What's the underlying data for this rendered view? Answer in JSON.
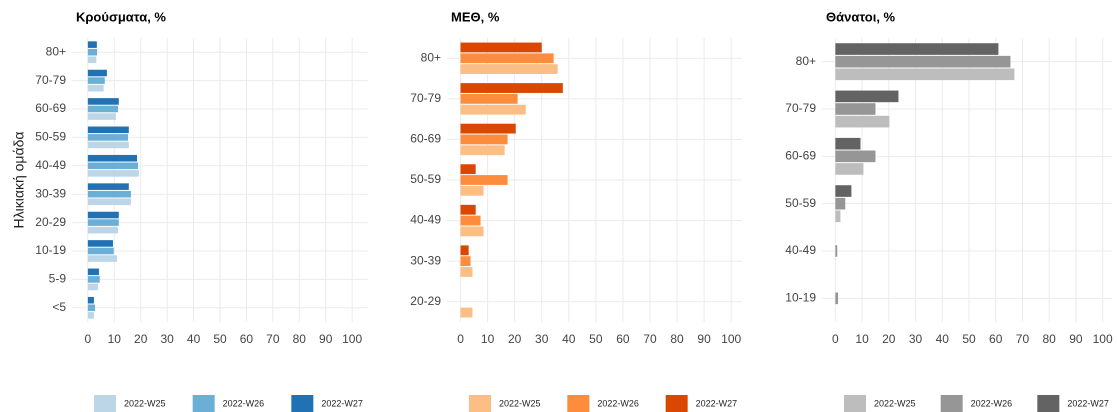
{
  "chart_data": [
    {
      "type": "barh",
      "title": "Κρούσματα, %",
      "ylabel": "Ηλικιακή ομάδα",
      "categories": [
        "80+",
        "70-79",
        "60-69",
        "50-59",
        "40-49",
        "30-39",
        "20-29",
        "10-19",
        "5-9",
        "<5"
      ],
      "series": [
        {
          "name": "2022-W25",
          "color": "#bcd6e8",
          "values": [
            3.2,
            6,
            10.6,
            15.5,
            19.3,
            16.3,
            11.4,
            11,
            3.8,
            2.3
          ]
        },
        {
          "name": "2022-W26",
          "color": "#6baed6",
          "values": [
            3.5,
            6.4,
            11.4,
            15.2,
            19,
            16.3,
            11.7,
            9.8,
            4.5,
            2.7
          ]
        },
        {
          "name": "2022-W27",
          "color": "#2171b5",
          "values": [
            3.4,
            7.2,
            11.7,
            15.5,
            18.6,
            15.5,
            11.7,
            9.5,
            4.2,
            2.3
          ]
        }
      ],
      "xlim": [
        -6,
        106
      ],
      "xticks": [
        0,
        10,
        20,
        30,
        40,
        50,
        60,
        70,
        80,
        90,
        100
      ],
      "grid": true
    },
    {
      "type": "barh",
      "title": "ΜΕΘ, %",
      "categories": [
        "80+",
        "70-79",
        "60-69",
        "50-59",
        "40-49",
        "30-39",
        "20-29"
      ],
      "series": [
        {
          "name": "2022-W25",
          "color": "#fdbe85",
          "values": [
            35.9,
            24.1,
            16.3,
            8.5,
            8.5,
            4.4,
            4.4
          ]
        },
        {
          "name": "2022-W26",
          "color": "#fd8d3c",
          "values": [
            34.4,
            21.1,
            17.4,
            17.4,
            7.4,
            3.7,
            null
          ]
        },
        {
          "name": "2022-W27",
          "color": "#d94701",
          "values": [
            30,
            37.8,
            20.4,
            5.6,
            5.6,
            3,
            null
          ]
        }
      ],
      "xlim": [
        -5,
        104
      ],
      "xticks": [
        0,
        10,
        20,
        30,
        40,
        50,
        60,
        70,
        80,
        90,
        100
      ],
      "grid": true
    },
    {
      "type": "barh",
      "title": "Θάνατοι, %",
      "categories": [
        "80+",
        "70-79",
        "60-69",
        "50-59",
        "40-49",
        "10-19"
      ],
      "series": [
        {
          "name": "2022-W25",
          "color": "#bdbdbd",
          "values": [
            67,
            20.2,
            10.5,
            1.9,
            null,
            null
          ]
        },
        {
          "name": "2022-W26",
          "color": "#969696",
          "values": [
            65.5,
            15,
            15,
            3.7,
            0.7,
            1
          ]
        },
        {
          "name": "2022-W27",
          "color": "#636363",
          "values": [
            61,
            23.6,
            9.4,
            6,
            null,
            null
          ]
        }
      ],
      "xlim": [
        -5,
        103.5
      ],
      "xticks": [
        0,
        10,
        20,
        30,
        40,
        50,
        60,
        70,
        80,
        90,
        100
      ],
      "grid": true
    }
  ]
}
